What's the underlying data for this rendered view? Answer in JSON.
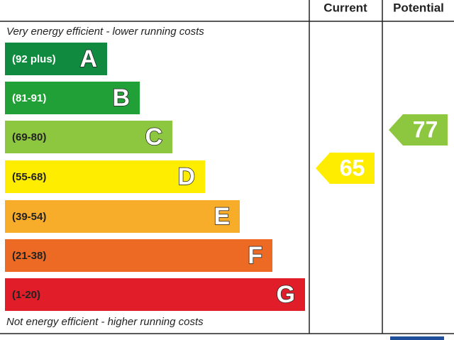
{
  "header": {
    "current": "Current",
    "potential": "Potential"
  },
  "top_note": "Very energy efficient - lower running costs",
  "bottom_note": "Not energy efficient - higher running costs",
  "bands": [
    {
      "range": "(92 plus)",
      "letter": "A",
      "color": "#0f8a3e",
      "text_color": "#ffffff"
    },
    {
      "range": "(81-91)",
      "letter": "B",
      "color": "#22a038",
      "text_color": "#ffffff"
    },
    {
      "range": "(69-80)",
      "letter": "C",
      "color": "#8dc63f",
      "text_color": "#222222"
    },
    {
      "range": "(55-68)",
      "letter": "D",
      "color": "#ffed00",
      "text_color": "#222222"
    },
    {
      "range": "(39-54)",
      "letter": "E",
      "color": "#f7ad2a",
      "text_color": "#222222"
    },
    {
      "range": "(21-38)",
      "letter": "F",
      "color": "#ec6a24",
      "text_color": "#222222"
    },
    {
      "range": "(1-20)",
      "letter": "G",
      "color": "#e11d2a",
      "text_color": "#222222"
    }
  ],
  "current": 65,
  "potential": 77
}
